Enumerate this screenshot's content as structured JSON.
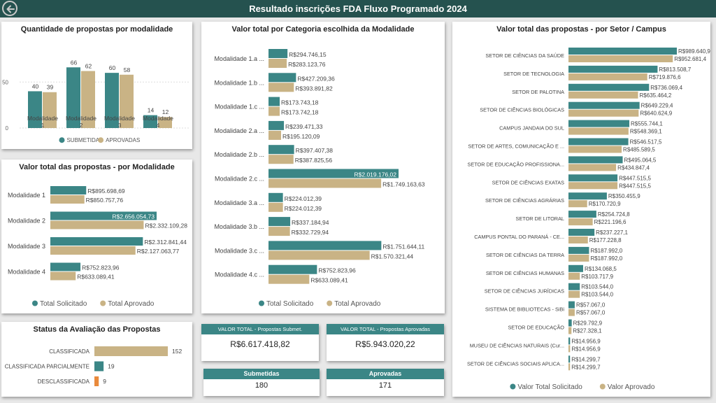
{
  "header": {
    "title": "Resultado inscrições FDA Fluxo Programado 2024"
  },
  "colors": {
    "teal": "#3b8686",
    "tan": "#c9b385",
    "orange": "#e98a3c",
    "header": "#25524f"
  },
  "cards": {
    "total_submetidas": {
      "label": "VALOR TOTAL - Propostas Submet.",
      "value": "R$6.617.418,82"
    },
    "total_aprovadas": {
      "label": "VALOR TOTAL - Propostas Aprovadas",
      "value": "R$5.943.020,22"
    },
    "submetidas": {
      "label": "Submetidas",
      "value": "180"
    },
    "aprovadas": {
      "label": "Aprovadas",
      "value": "171"
    }
  },
  "chart_data": [
    {
      "id": "quantidade",
      "type": "bar",
      "title": "Quantidade de propostas por modalidade",
      "categories": [
        "Modalidade 1",
        "Modalidade 2",
        "Modalidade 3",
        "Modalidade 4"
      ],
      "series": [
        {
          "name": "SUBMETIDAS",
          "values": [
            40,
            66,
            60,
            14
          ]
        },
        {
          "name": "APROVADAS",
          "values": [
            39,
            62,
            58,
            12
          ]
        }
      ],
      "yticks": [
        "0",
        "50"
      ],
      "ylim": [
        0,
        70
      ],
      "legend": "bottom"
    },
    {
      "id": "modalidade",
      "type": "bar",
      "orientation": "horizontal",
      "title": "Valor total das propostas - por Modalidade",
      "categories": [
        "Modalidade 1",
        "Modalidade 2",
        "Modalidade 3",
        "Modalidade 4"
      ],
      "series": [
        {
          "name": "Total Solicitado",
          "values": [
            895698.69,
            2656054.73,
            2312841.44,
            752823.96
          ],
          "labels": [
            "R$895.698,69",
            "R$2.656.054,73",
            "R$2.312.841,44",
            "R$752.823,96"
          ]
        },
        {
          "name": "Total Aprovado",
          "values": [
            850757.76,
            2332109.28,
            2127063.77,
            633089.41
          ],
          "labels": [
            "R$850.757,76",
            "R$2.332.109,28",
            "R$2.127.063,77",
            "R$633.089,41"
          ]
        }
      ],
      "legend": "bottom"
    },
    {
      "id": "categoria",
      "type": "bar",
      "orientation": "horizontal",
      "title": "Valor total por Categoria escolhida da Modalidade",
      "categories": [
        "Modalidade 1.a ...",
        "Modalidade 1.b ...",
        "Modalidade 1.c ...",
        "Modalidade 2.a ...",
        "Modalidade 2.b ...",
        "Modalidade 2.c ...",
        "Modalidade 3.a ...",
        "Modalidade 3.b ...",
        "Modalidade 3.c ...",
        "Modalidade 4.c ..."
      ],
      "series": [
        {
          "name": "Total Solicitado",
          "values": [
            294746.15,
            427209.36,
            173743.18,
            239471.33,
            397407.38,
            2019176.02,
            224012.39,
            337184.94,
            1751644.11,
            752823.96
          ],
          "labels": [
            "R$294.746,15",
            "R$427.209,36",
            "R$173.743,18",
            "R$239.471,33",
            "R$397.407,38",
            "R$2.019.176,02",
            "R$224.012,39",
            "R$337.184,94",
            "R$1.751.644,11",
            "R$752.823,96"
          ]
        },
        {
          "name": "Total Aprovado",
          "values": [
            283123.76,
            393891.82,
            173742.18,
            195120.09,
            387825.56,
            1749163.63,
            224012.39,
            332729.94,
            1570321.44,
            633089.41
          ],
          "labels": [
            "R$283.123,76",
            "R$393.891,82",
            "R$173.742,18",
            "R$195.120,09",
            "R$387.825,56",
            "R$1.749.163,63",
            "R$224.012,39",
            "R$332.729,94",
            "R$1.570.321,44",
            "R$633.089,41"
          ]
        }
      ],
      "legend": "bottom"
    },
    {
      "id": "setor",
      "type": "bar",
      "orientation": "horizontal",
      "title": "Valor total das propostas - por Setor / Campus",
      "categories": [
        "SETOR DE CIÊNCIAS DA SAÚDE",
        "SETOR DE TECNOLOGIA",
        "SETOR DE PALOTINA",
        "SETOR DE CIÊNCIAS BIOLÓGICAS",
        "CAMPUS JANDAIA DO SUL",
        "SETOR DE ARTES, COMUNICAÇÃO E ...",
        "SETOR DE EDUCAÇÃO PROFISSIONA...",
        "SETOR DE CIÊNCIAS EXATAS",
        "SETOR DE CIÊNCIAS AGRÁRIAS",
        "SETOR DE LITORAL",
        "CAMPUS PONTAL DO PARANÁ - CE...",
        "SETOR DE CIÊNCIAS DA TERRA",
        "SETOR DE CIÊNCIAS HUMANAS",
        "SETOR DE CIÊNCIAS JURÍDICAS",
        "SISTEMA DE BIBLIOTECAS - SiBi",
        "SETOR DE EDUCAÇÃO",
        "MUSEU DE CIÊNCIAS NATURAIS (Cur...",
        "SETOR DE CIÊNCIAS SOCIAIS APLICA..."
      ],
      "series": [
        {
          "name": "Valor Total Solicitado",
          "values": [
            989640.9,
            813508.7,
            736069.4,
            649229.4,
            555744.1,
            546517.5,
            495064.5,
            447515.5,
            350455.9,
            254724.8,
            237227.1,
            187992.0,
            134068.5,
            103544.0,
            57067.0,
            29792.9,
            14956.9,
            14299.7
          ],
          "labels": [
            "R$989.640,9",
            "R$813.508,7",
            "R$736.069,4",
            "R$649.229,4",
            "R$555.744,1",
            "R$546.517,5",
            "R$495.064,5",
            "R$447.515,5",
            "R$350.455,9",
            "R$254.724,8",
            "R$237.227,1",
            "R$187.992,0",
            "R$134.068,5",
            "R$103.544,0",
            "R$57.067,0",
            "R$29.792,9",
            "R$14.956,9",
            "R$14.299,7"
          ]
        },
        {
          "name": "Valor Aprovado",
          "values": [
            952681.4,
            719876.6,
            635464.2,
            640624.9,
            548369.1,
            485589.5,
            434847.4,
            447515.5,
            170720.9,
            221196.6,
            177228.8,
            187992.0,
            103717.9,
            103544.0,
            57067.0,
            27328.1,
            14956.9,
            14299.7
          ],
          "labels": [
            "R$952.681,4",
            "R$719.876,6",
            "R$635.464,2",
            "R$640.624,9",
            "R$548.369,1",
            "R$485.589,5",
            "R$434.847,4",
            "R$447.515,5",
            "R$170.720,9",
            "R$221.196,6",
            "R$177.228,8",
            "R$187.992,0",
            "R$103.717,9",
            "R$103.544,0",
            "R$57.067,0",
            "R$27.328,1",
            "R$14.956,9",
            "R$14.299,7"
          ]
        }
      ],
      "legend": "bottom"
    },
    {
      "id": "status",
      "type": "bar",
      "orientation": "horizontal",
      "title": "Status da Avaliação das Propostas",
      "categories": [
        "CLASSIFICADA",
        "CLASSIFICADA PARCIALMENTE",
        "DESCLASSIFICADA"
      ],
      "values": [
        152,
        19,
        9
      ],
      "colors": [
        "#c9b385",
        "#3b8686",
        "#e98a3c"
      ]
    }
  ]
}
